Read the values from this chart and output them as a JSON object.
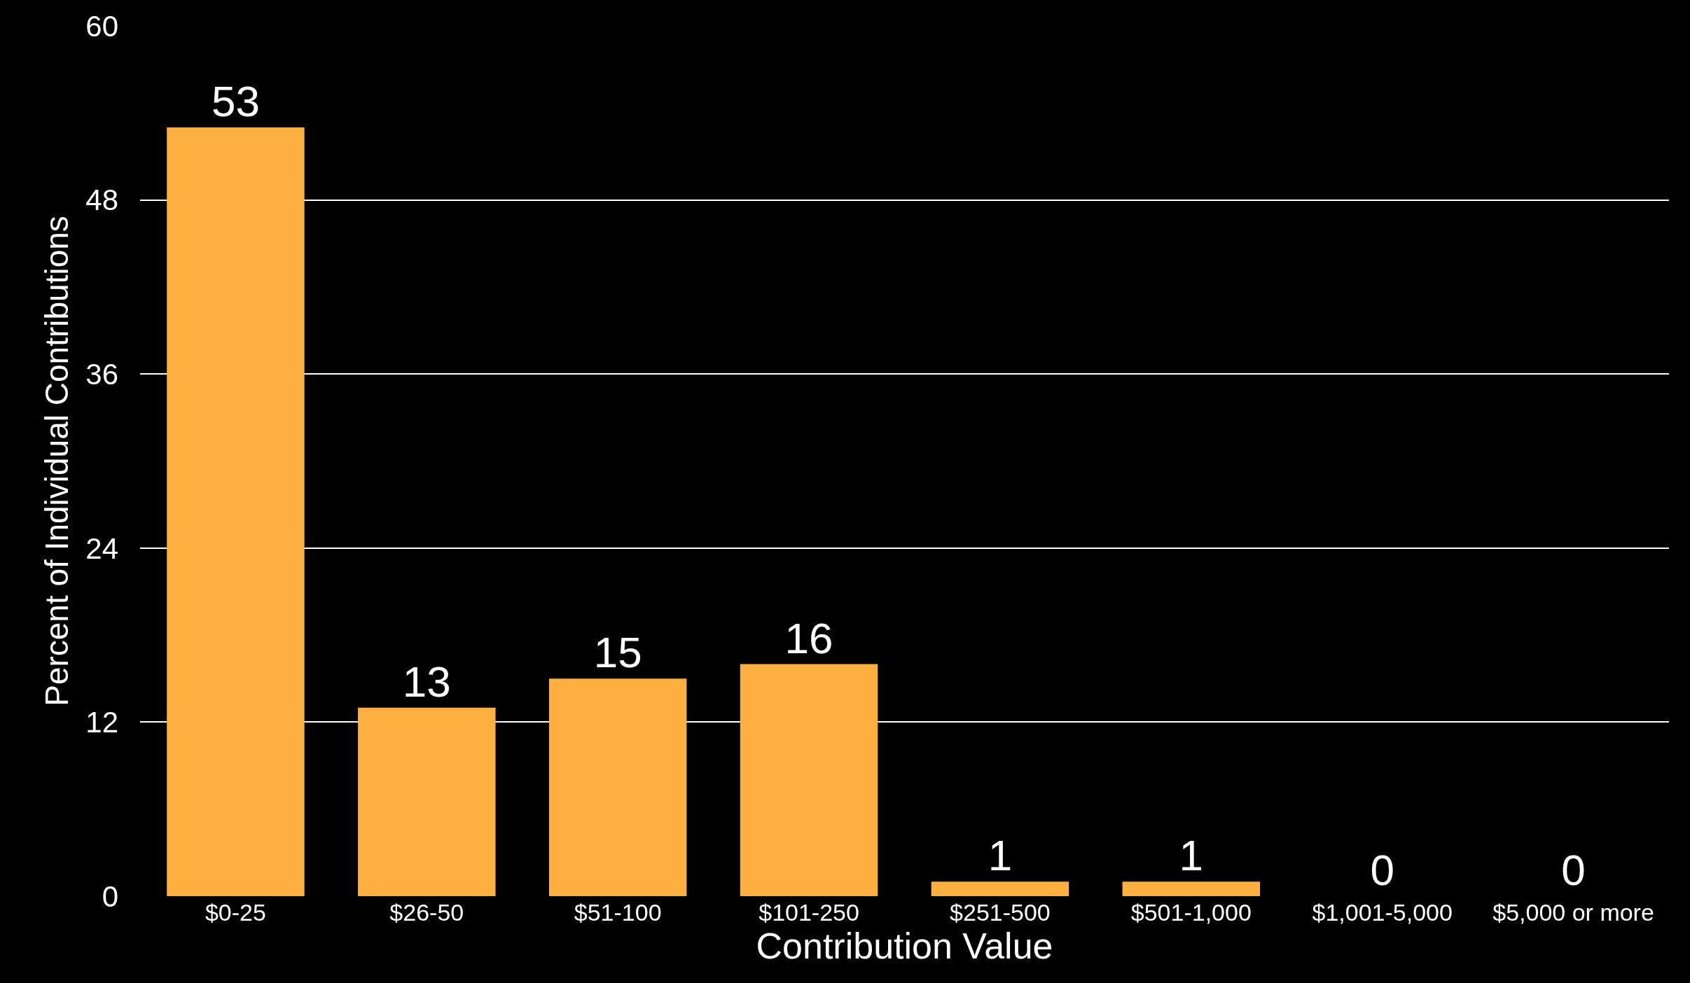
{
  "chart_data": {
    "type": "bar",
    "xlabel": "Contribution Value",
    "ylabel": "Percent of Individual Contributions",
    "categories": [
      "$0-25",
      "$26-50",
      "$51-100",
      "$101-250",
      "$251-500",
      "$501-1,000",
      "$1,001-5,000",
      "$5,000 or more"
    ],
    "values": [
      53,
      13,
      15,
      16,
      1,
      1,
      0,
      0
    ],
    "color": "#fdb040",
    "ylim": [
      0,
      60
    ],
    "yticks": [
      0,
      12,
      24,
      36,
      48,
      60
    ],
    "grid": "y",
    "data_labels": true
  }
}
